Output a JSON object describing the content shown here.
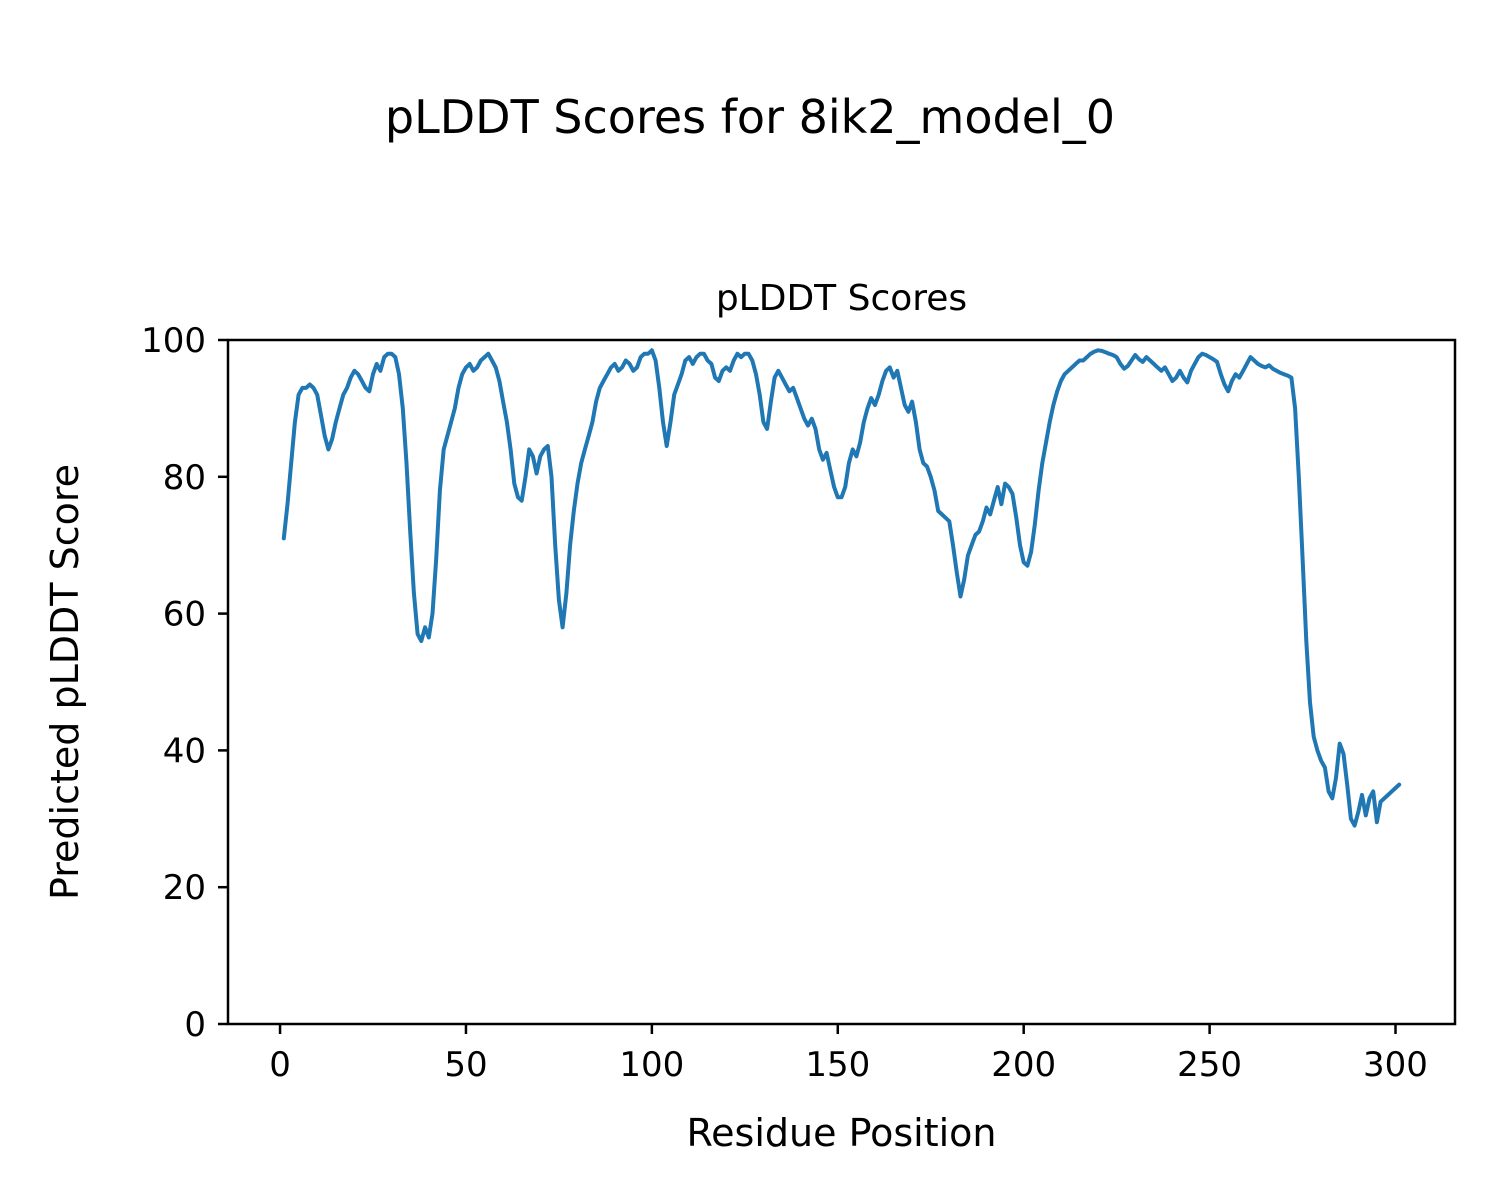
{
  "figure": {
    "suptitle": "pLDDT Scores for 8ik2_model_0"
  },
  "chart_data": {
    "type": "line",
    "title": "pLDDT Scores",
    "xlabel": "Residue Position",
    "ylabel": "Predicted pLDDT Score",
    "xlim": [
      -14,
      316
    ],
    "ylim": [
      0,
      100
    ],
    "xticks": [
      0,
      50,
      100,
      150,
      200,
      250,
      300
    ],
    "yticks": [
      0,
      20,
      40,
      60,
      80,
      100
    ],
    "grid": false,
    "legend": "none",
    "line_color": "#1f77b4",
    "line_width": 4,
    "x_start": 1,
    "x_step": 1,
    "values": [
      71,
      76,
      82,
      88,
      92,
      93,
      93,
      93.5,
      93,
      92,
      89,
      86,
      84,
      85.5,
      88,
      90,
      92,
      93,
      94.5,
      95.5,
      95,
      94,
      93,
      92.5,
      95,
      96.5,
      95.5,
      97.5,
      98,
      98,
      97.5,
      95,
      90,
      82,
      72,
      63,
      57,
      56,
      58,
      56.5,
      60,
      68,
      78,
      84,
      86,
      88,
      90,
      93,
      95,
      96,
      96.5,
      95.5,
      96,
      97,
      97.5,
      98,
      97,
      96,
      94,
      91,
      88,
      84,
      79,
      77,
      76.5,
      80,
      84,
      83,
      80.5,
      83,
      84,
      84.5,
      80,
      70,
      62,
      58,
      63,
      70,
      75,
      79,
      82,
      84,
      86,
      88,
      91,
      93,
      94,
      95,
      96,
      96.5,
      95.5,
      96,
      97,
      96.5,
      95.5,
      96,
      97.5,
      98,
      98,
      98.5,
      97,
      93,
      88,
      84.5,
      88,
      92,
      93.5,
      95,
      97,
      97.5,
      96.5,
      97.5,
      98,
      98,
      97,
      96.5,
      94.5,
      94,
      95.5,
      96,
      95.5,
      97,
      98,
      97.5,
      98,
      98,
      97,
      95,
      92,
      88,
      87,
      91,
      94.5,
      95.5,
      94.5,
      93.5,
      92.5,
      93,
      91.5,
      90,
      88.5,
      87.5,
      88.5,
      87,
      84,
      82.5,
      83.5,
      81,
      78.5,
      77,
      77,
      78.5,
      82,
      84,
      83,
      85,
      88,
      90,
      91.5,
      90.5,
      92,
      94,
      95.5,
      96,
      94.5,
      95.5,
      93,
      90.5,
      89.5,
      91,
      88,
      84,
      82,
      81.5,
      80,
      78,
      75,
      74.5,
      74,
      73.5,
      70,
      66,
      62.5,
      65,
      68.5,
      70,
      71.5,
      72,
      73.5,
      75.5,
      74.5,
      76.5,
      78.5,
      76,
      79,
      78.5,
      77.5,
      74,
      70,
      67.5,
      67,
      69,
      73,
      78,
      82,
      85,
      88,
      90.5,
      92.5,
      94,
      95,
      95.5,
      96,
      96.5,
      97,
      97,
      97.5,
      98,
      98.3,
      98.5,
      98.4,
      98.2,
      98,
      97.8,
      97.5,
      96.5,
      95.8,
      96.2,
      97,
      97.8,
      97.2,
      96.8,
      97.5,
      97,
      96.5,
      96,
      95.5,
      96,
      95,
      94,
      94.5,
      95.5,
      94.5,
      93.8,
      95.5,
      96.5,
      97.5,
      98,
      97.8,
      97.5,
      97.2,
      96.8,
      95,
      93.5,
      92.5,
      94,
      95,
      94.5,
      95.5,
      96.5,
      97.5,
      97,
      96.5,
      96.2,
      96,
      96.3,
      95.8,
      95.5,
      95.2,
      95,
      94.8,
      94.5,
      90,
      80,
      68,
      56,
      47,
      42,
      40,
      38.5,
      37.5,
      34,
      33,
      36,
      41,
      39.5,
      35,
      30,
      29,
      31,
      33.5,
      30.5,
      33,
      34,
      29.5,
      32.5,
      33,
      33.5,
      34,
      34.5,
      35
    ]
  }
}
